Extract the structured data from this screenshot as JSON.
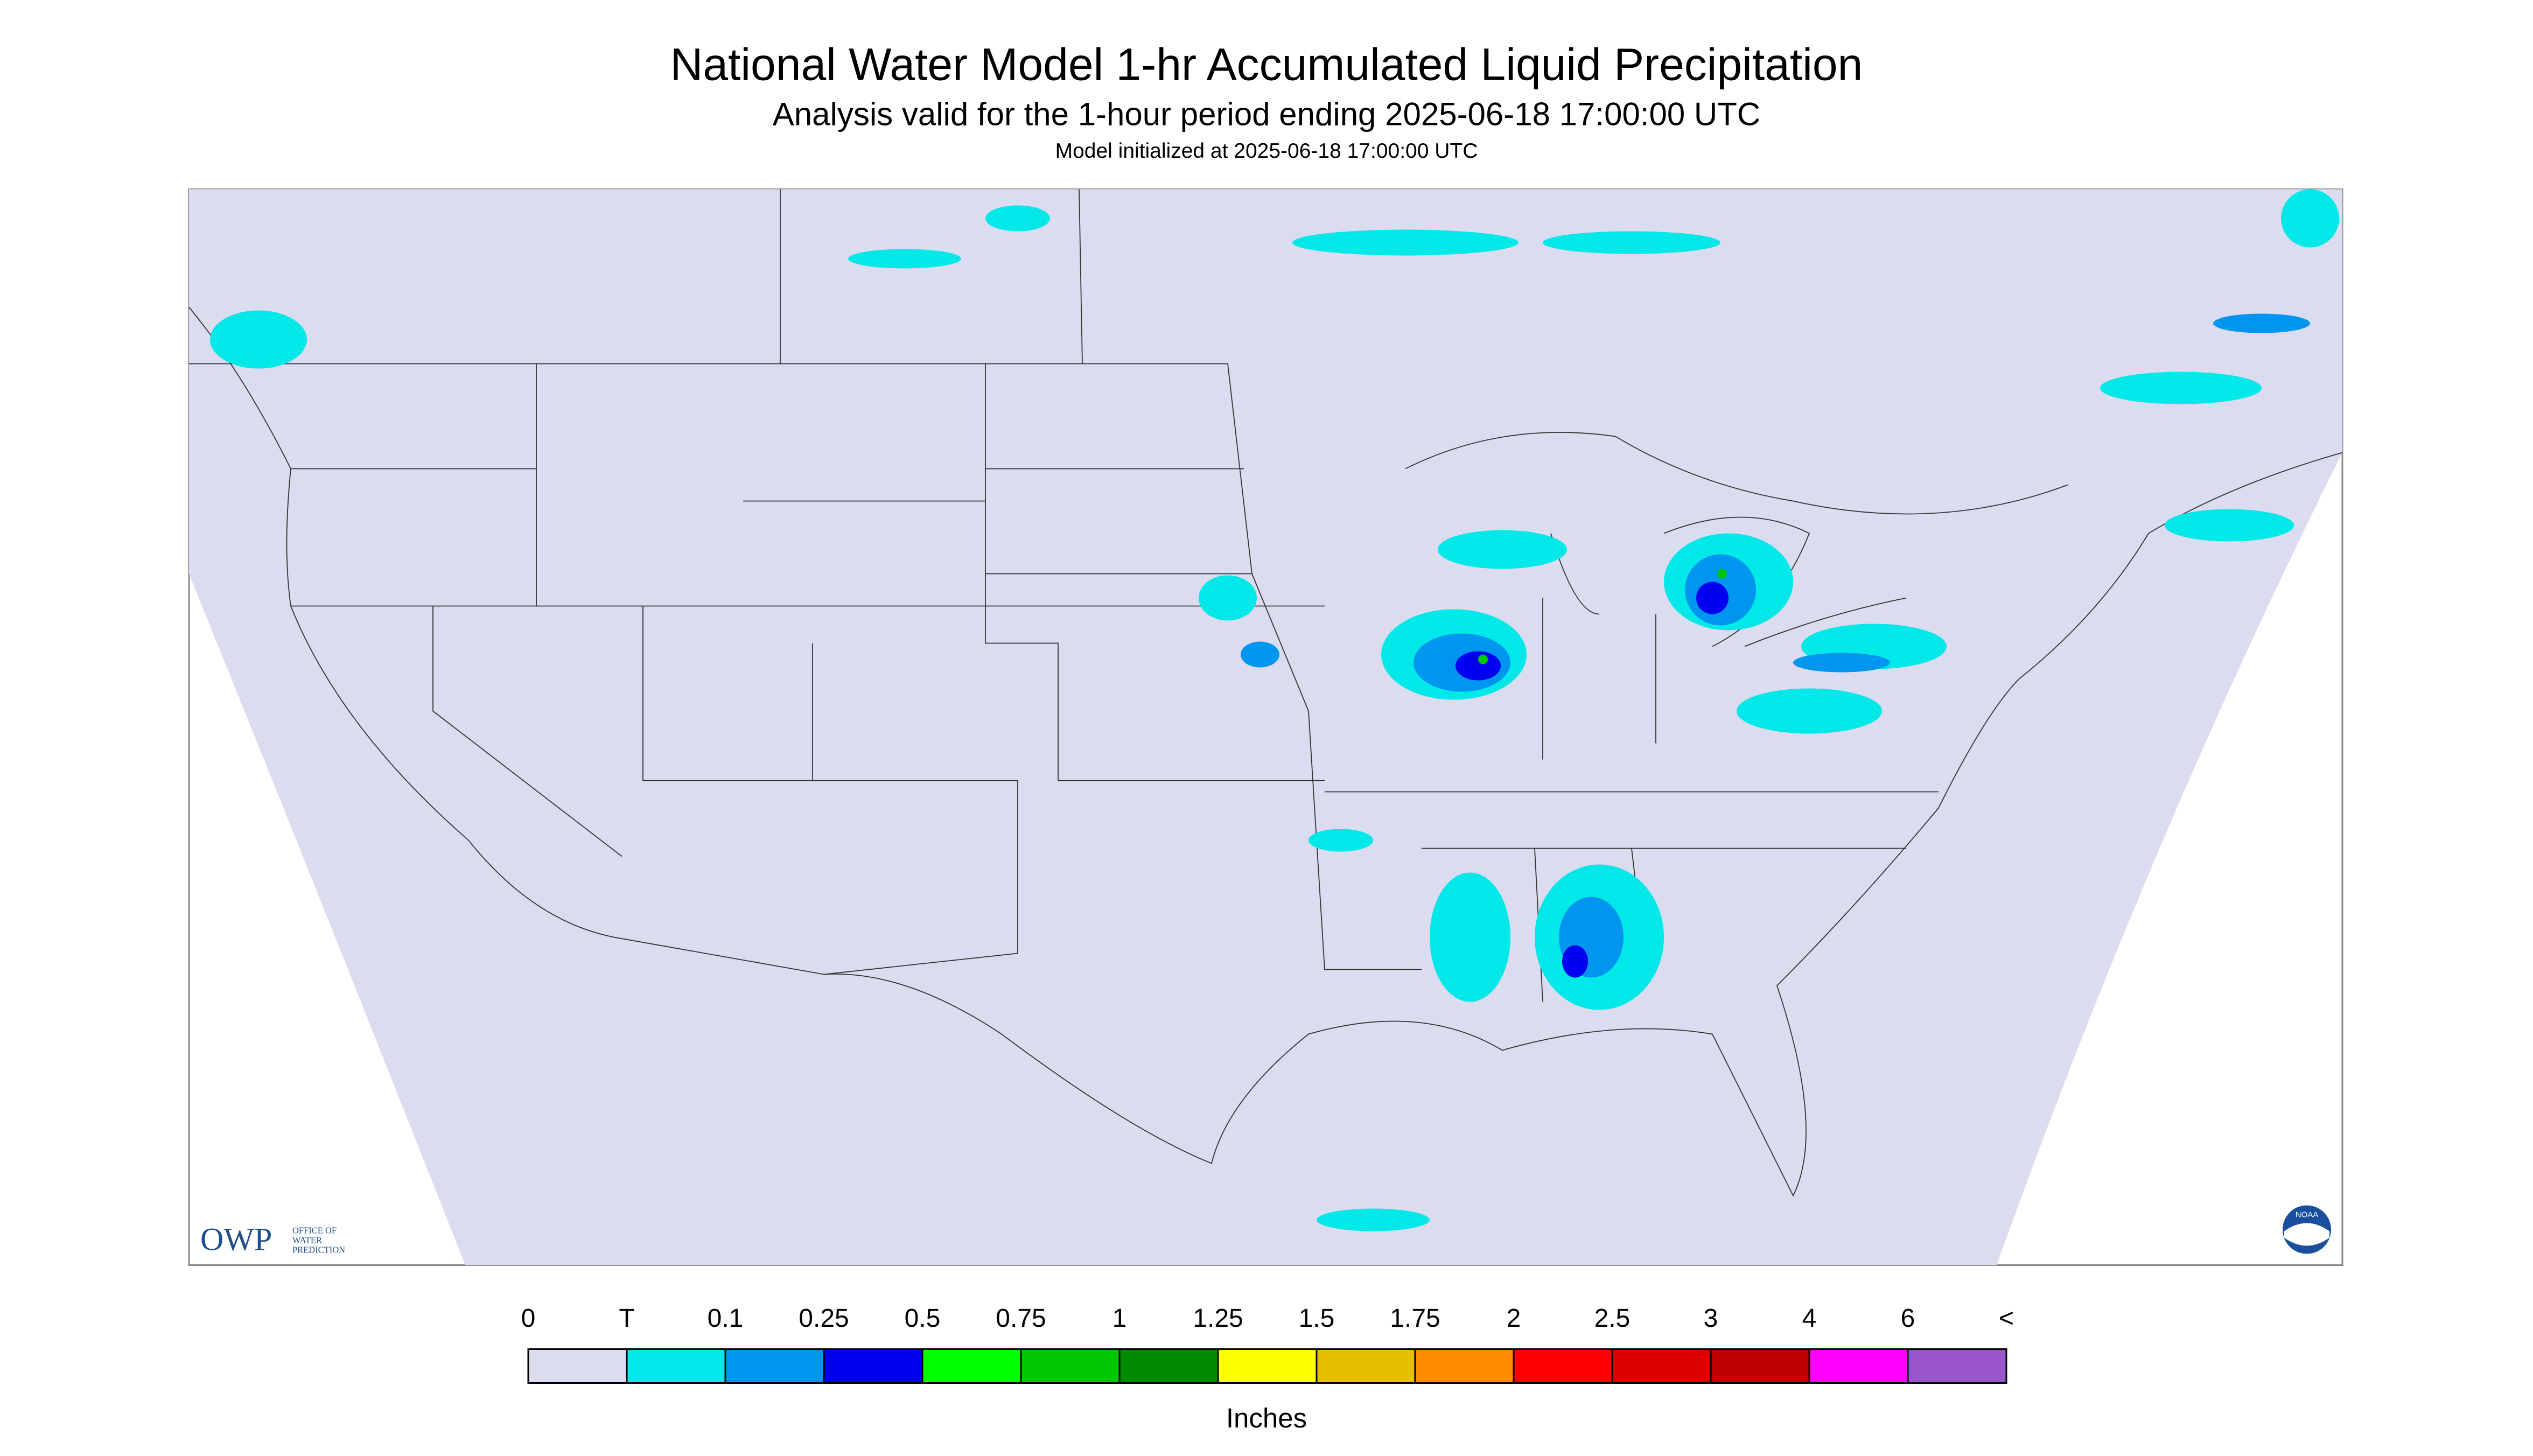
{
  "header": {
    "title": "National Water Model 1-hr Accumulated Liquid Precipitation",
    "subtitle": "Analysis valid for the 1-hour period ending 2025-06-18 17:00:00 UTC",
    "init": "Model initialized at 2025-06-18 17:00:00 UTC"
  },
  "colorbar": {
    "labels": [
      "0",
      "T",
      "0.1",
      "0.25",
      "0.5",
      "0.75",
      "1",
      "1.25",
      "1.5",
      "1.75",
      "2",
      "2.5",
      "3",
      "4",
      "6",
      "<"
    ],
    "colors": [
      "#dcdcf0",
      "#00e8e8",
      "#0096f0",
      "#0000f0",
      "#00ff00",
      "#00c800",
      "#008a00",
      "#ffff00",
      "#e6c000",
      "#ff8c00",
      "#ff0000",
      "#dc0000",
      "#be0000",
      "#ff00ff",
      "#9955cc"
    ],
    "unit": "Inches"
  },
  "logos": {
    "owp": "OWP",
    "owp_name": [
      "OFFICE OF",
      "WATER",
      "PREDICTION"
    ],
    "noaa": "NOAA"
  }
}
